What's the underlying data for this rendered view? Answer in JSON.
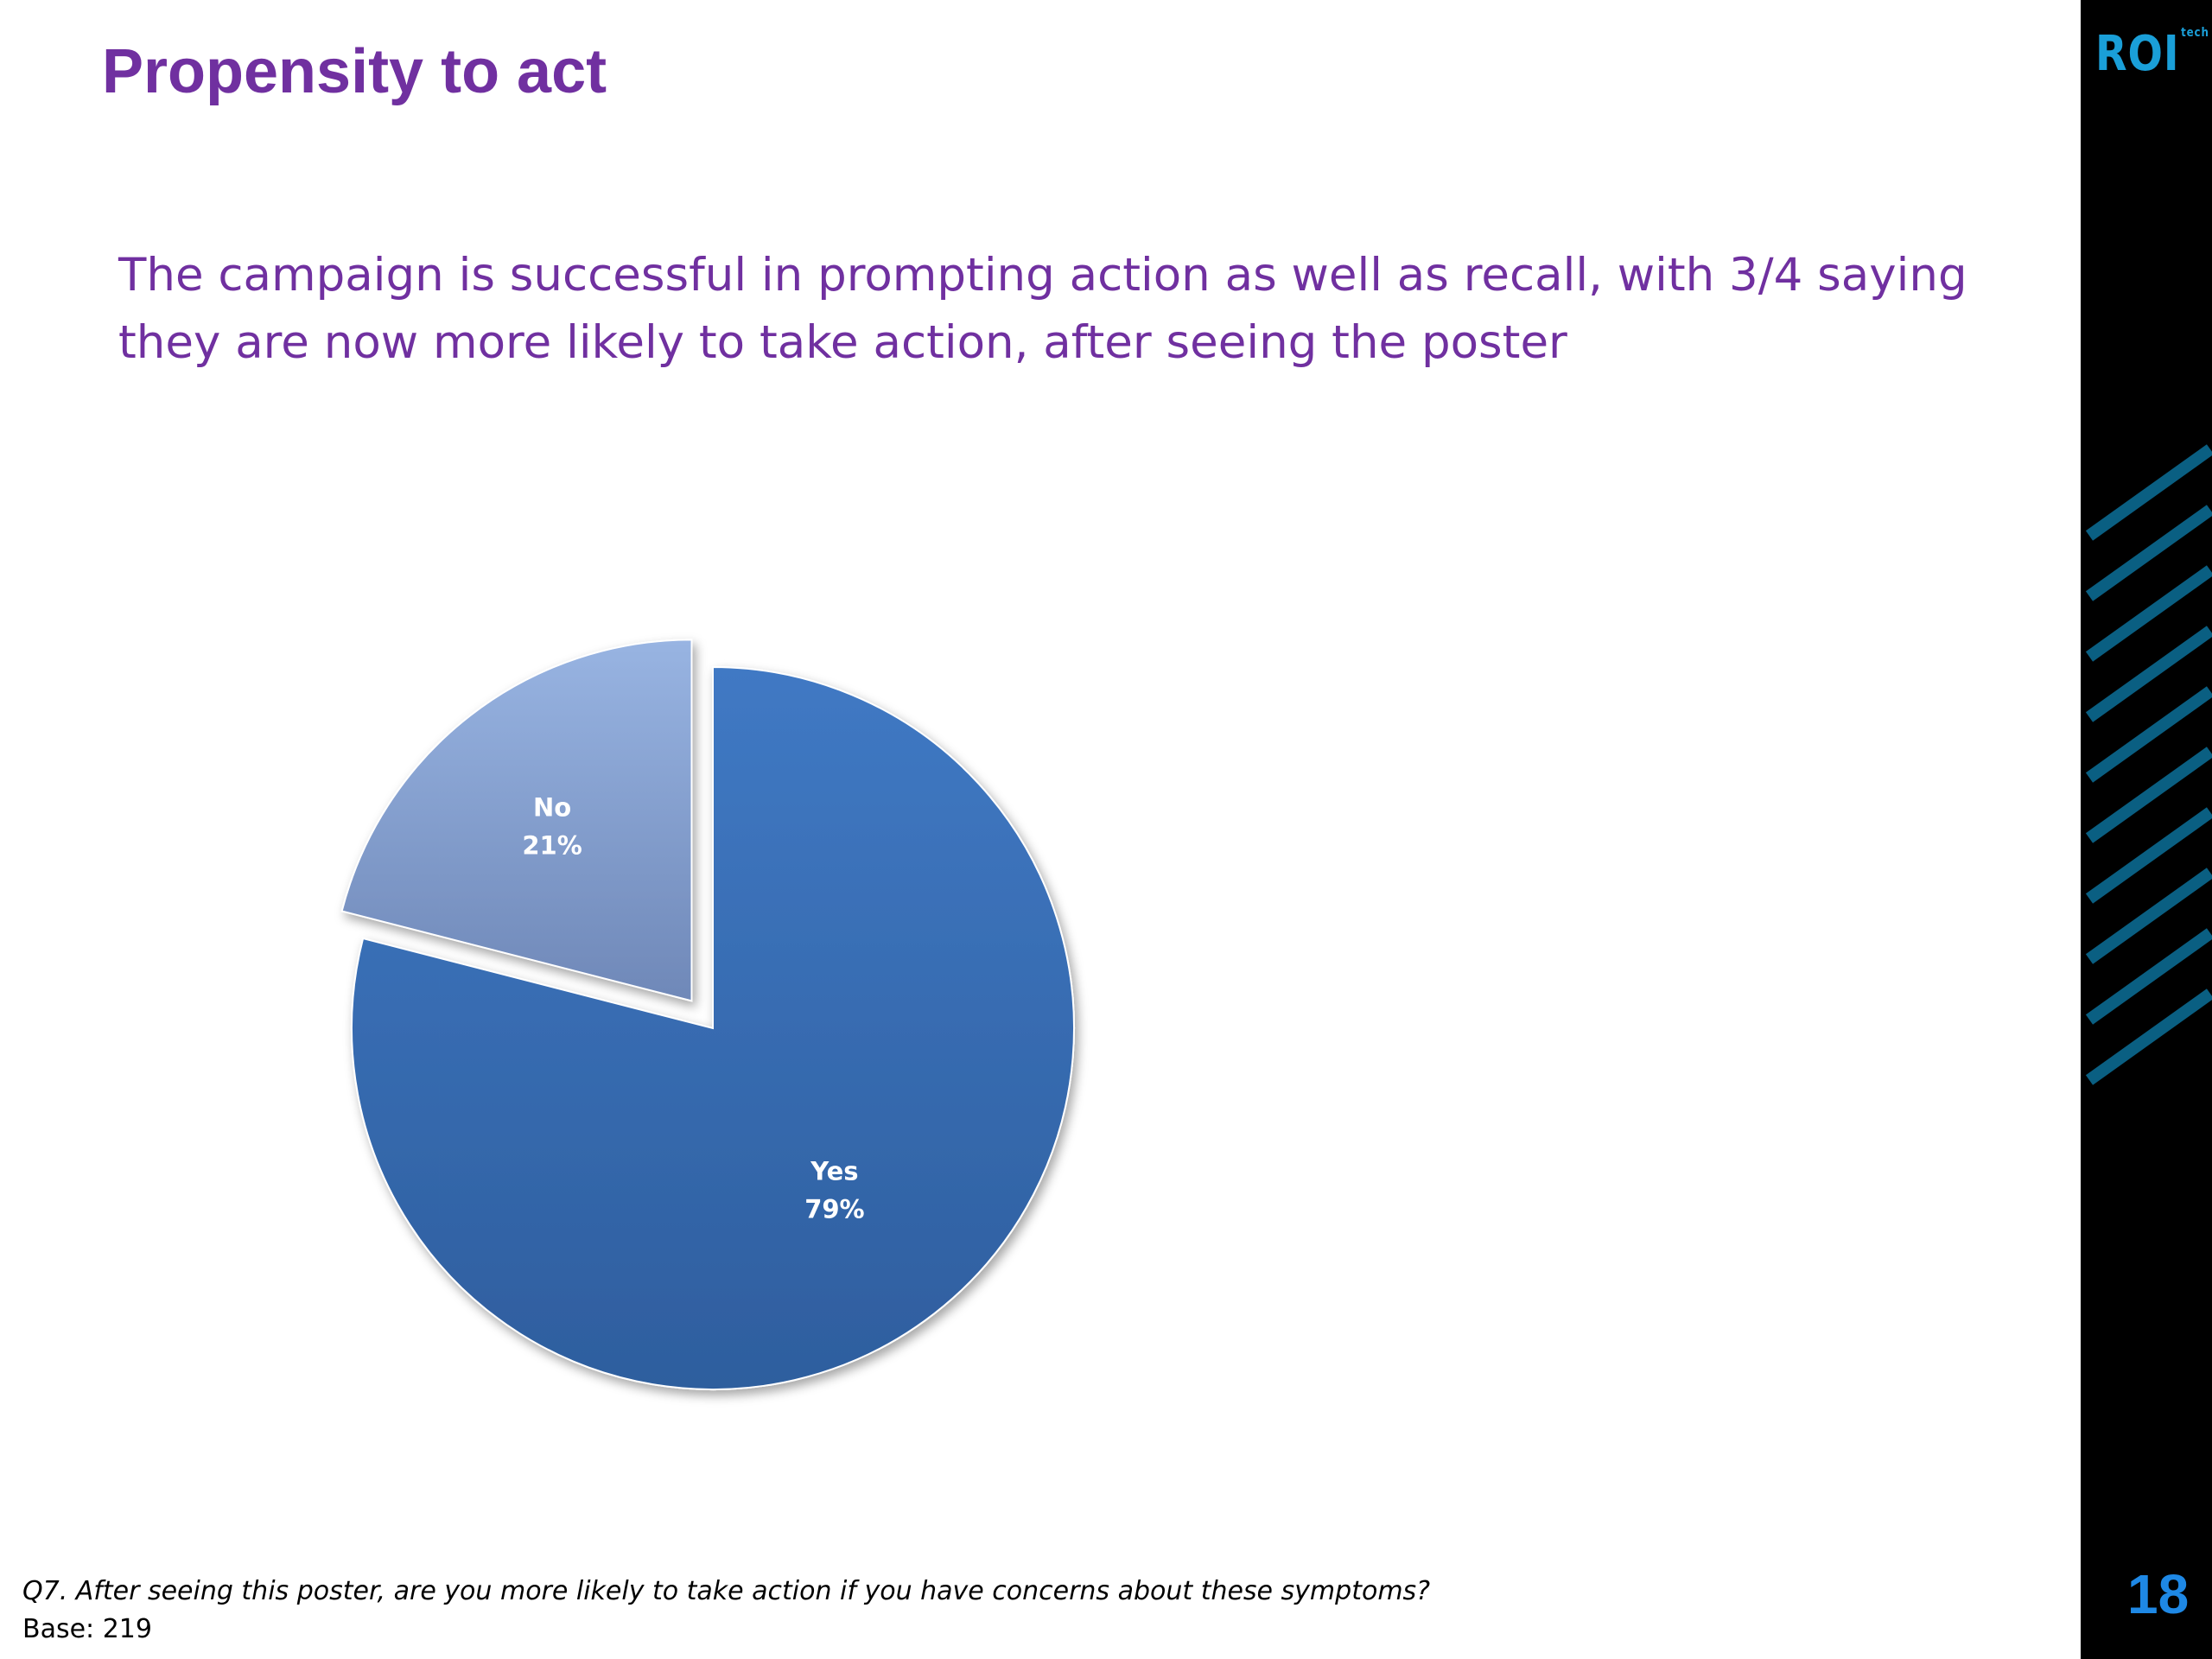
{
  "slide": {
    "title": "Propensity to act",
    "subtitle": "The campaign is successful in prompting action as well as recall, with 3/4 saying they are now more likely to take action, after seeing the poster",
    "footnote_question": "Q7. After seeing this poster, are you more likely to take action if you have concerns about these symptoms?",
    "footnote_base": "Base: 219",
    "page_number": "18",
    "logo_text": "ROI",
    "logo_super": "tech"
  },
  "chart_data": {
    "type": "pie",
    "slices": [
      {
        "label": "Yes",
        "value": 79,
        "value_label": "79%",
        "color": "#3a6eb5",
        "exploded": false
      },
      {
        "label": "No",
        "value": 21,
        "value_label": "21%",
        "color": "#8aa6d6",
        "exploded": true
      }
    ],
    "title": "",
    "legend": "none",
    "data_labels": "inside"
  },
  "colors": {
    "title": "#7030a0",
    "yes_slice": "#3a6eb5",
    "no_slice": "#8aa6d6",
    "page_number": "#1e88e5",
    "sidebar": "#000000"
  }
}
